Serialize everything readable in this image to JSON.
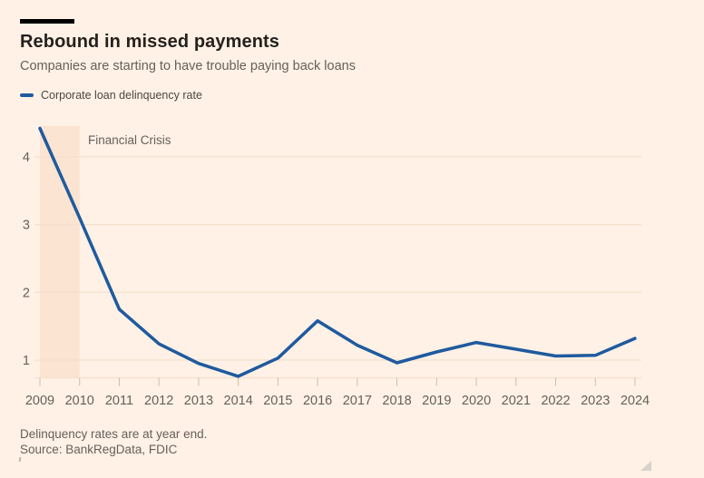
{
  "header": {
    "title": "Rebound in missed payments",
    "subtitle": "Companies are starting to have trouble paying back loans"
  },
  "legend": {
    "label": "Corporate loan delinquency rate",
    "color": "#1f5a9e"
  },
  "chart_data": {
    "type": "line",
    "title": "Rebound in missed payments",
    "xlabel": "",
    "ylabel": "",
    "x": [
      "2009",
      "2010",
      "2011",
      "2012",
      "2013",
      "2014",
      "2015",
      "2016",
      "2017",
      "2018",
      "2019",
      "2020",
      "2021",
      "2022",
      "2023",
      "2024"
    ],
    "series": [
      {
        "name": "Corporate loan delinquency rate",
        "values": [
          4.42,
          3.1,
          1.75,
          1.24,
          0.95,
          0.76,
          1.03,
          1.58,
          1.22,
          0.96,
          1.12,
          1.26,
          1.16,
          1.06,
          1.07,
          1.32
        ]
      }
    ],
    "yticks": [
      1,
      2,
      3,
      4
    ],
    "ylim": [
      0.75,
      4.45
    ],
    "grid": "horizontal",
    "legend_position": "top-left",
    "annotations": [
      {
        "type": "band",
        "label": "Financial Crisis",
        "x_start": "2009",
        "x_end": "2010"
      }
    ],
    "colors": {
      "line": "#1f5a9e",
      "band": "#fbe4d1",
      "grid": "#f3e0ce",
      "tick": "#ccbdaf",
      "text": "#66605c",
      "background": "#fff1e5"
    }
  },
  "footer": {
    "note": "Delinquency rates are at year end.",
    "source": "Source: BankRegData, FDIC"
  }
}
